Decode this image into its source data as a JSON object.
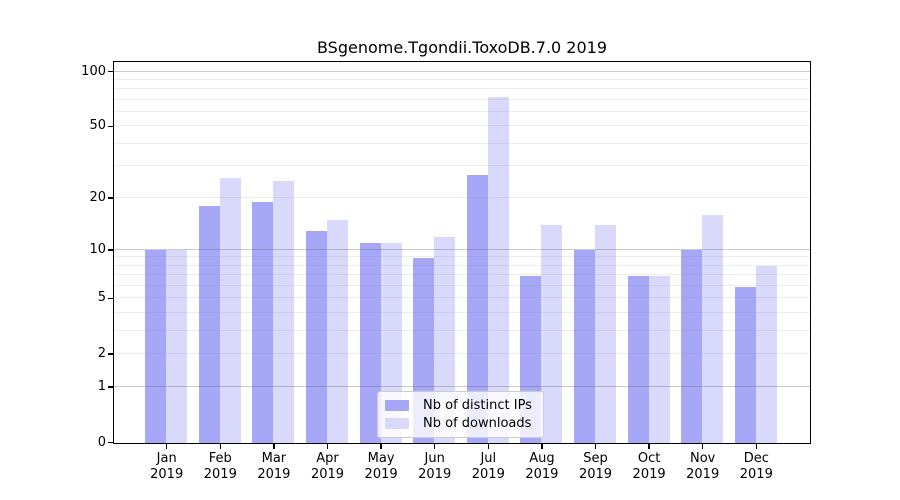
{
  "chart_data": {
    "type": "bar",
    "title": "BSgenome.Tgondii.ToxoDB.7.0 2019",
    "categories": [
      "Jan",
      "Feb",
      "Mar",
      "Apr",
      "May",
      "Jun",
      "Jul",
      "Aug",
      "Sep",
      "Oct",
      "Nov",
      "Dec"
    ],
    "x_tick_line2": "2019",
    "series": [
      {
        "name": "Nb of distinct IPs",
        "color": "#a7a7f8",
        "values": [
          10,
          18,
          19,
          13,
          11,
          9,
          27,
          7,
          10,
          7,
          10,
          6
        ]
      },
      {
        "name": "Nb of downloads",
        "color": "#d9d9fb",
        "values": [
          10,
          26,
          25,
          15,
          11,
          12,
          73,
          14,
          14,
          7,
          16,
          8
        ]
      }
    ],
    "yscale": "log1p",
    "ylim": [
      0,
      112
    ],
    "yticks": [
      0,
      1,
      2,
      5,
      10,
      20,
      50,
      100
    ],
    "gridlines": {
      "major": [
        1,
        10,
        100
      ],
      "minor": [
        2,
        3,
        4,
        5,
        6,
        7,
        8,
        9,
        20,
        30,
        40,
        50,
        60,
        70,
        80,
        90
      ]
    },
    "legend_position": "bottom-center",
    "colors": {
      "background": "#ffffff",
      "axis": "#000000",
      "major_grid": "#c8c8c8",
      "minor_grid": "#ececec"
    }
  }
}
